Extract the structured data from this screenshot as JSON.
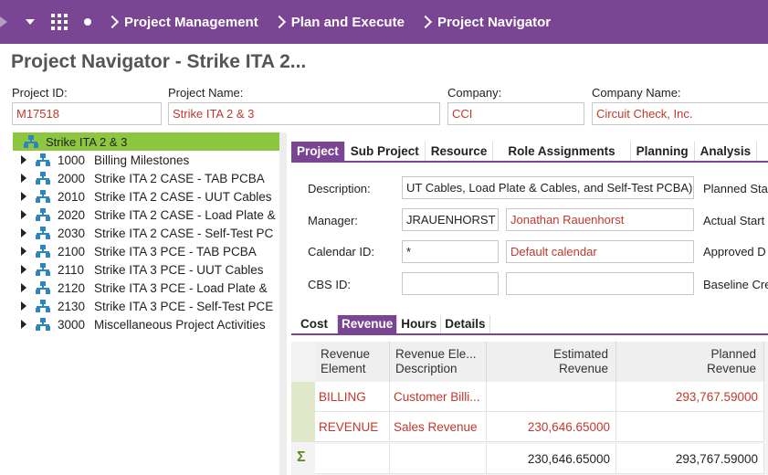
{
  "header": {
    "breadcrumbs": [
      "Project Management",
      "Plan and Execute",
      "Project Navigator"
    ],
    "colors": {
      "bar": "#7a4593",
      "accent": "#8dc63f",
      "error_text": "#c0392b"
    }
  },
  "page_title": "Project Navigator - Strike ITA 2...",
  "fields": {
    "project_id": {
      "label": "Project ID:",
      "value": "M17518"
    },
    "project_name": {
      "label": "Project Name:",
      "value": "Strike ITA 2 & 3"
    },
    "company": {
      "label": "Company:",
      "value": "CCI"
    },
    "company_name": {
      "label": "Company Name:",
      "value": "Circuit Check, Inc."
    }
  },
  "tree": {
    "root": "Strike ITA 2 & 3",
    "items": [
      {
        "code": "1000",
        "name": "Billing Milestones"
      },
      {
        "code": "2000",
        "name": "Strike ITA 2 CASE - TAB PCBA"
      },
      {
        "code": "2010",
        "name": "Strike ITA 2 CASE - UUT Cables"
      },
      {
        "code": "2020",
        "name": "Strike ITA 2 CASE - Load Plate &"
      },
      {
        "code": "2030",
        "name": "Strike ITA 2 CASE - Self-Test PC"
      },
      {
        "code": "2100",
        "name": "Strike ITA 3 PCE - TAB PCBA"
      },
      {
        "code": "2110",
        "name": "Strike ITA 3 PCE - UUT Cables"
      },
      {
        "code": "2120",
        "name": "Strike ITA 3 PCE - Load Plate &"
      },
      {
        "code": "2130",
        "name": "Strike ITA 3 PCE - Self-Test PCE"
      },
      {
        "code": "3000",
        "name": "Miscellaneous Project Activities"
      }
    ]
  },
  "tabs": [
    "Project",
    "Sub Project",
    "Resource",
    "Role Assignments",
    "Planning",
    "Analysis"
  ],
  "details": {
    "description": {
      "label": "Description:",
      "value": "UT Cables, Load Plate & Cables, and Self-Test PCBA)"
    },
    "manager": {
      "label": "Manager:",
      "id": "JRAUENHORST",
      "name": "Jonathan Rauenhorst"
    },
    "calendar": {
      "label": "Calendar ID:",
      "id": "*",
      "name": "Default calendar"
    },
    "cbs": {
      "label": "CBS ID:",
      "id": "",
      "name": ""
    },
    "right_labels": [
      "Planned Sta",
      "Actual Start",
      "Approved D",
      "Baseline Cre"
    ]
  },
  "subtabs": [
    "Cost",
    "Revenue",
    "Hours",
    "Details"
  ],
  "revenue_grid": {
    "headers": [
      [
        "Revenue",
        "Element"
      ],
      [
        "Revenue Ele...",
        "Description"
      ],
      [
        "Estimated",
        "Revenue"
      ],
      [
        "Planned",
        "Revenue"
      ]
    ],
    "rows": [
      {
        "element": "BILLING",
        "description": "Customer Billi...",
        "estimated": "",
        "planned": "293,767.59000"
      },
      {
        "element": "REVENUE",
        "description": "Sales Revenue",
        "estimated": "230,646.65000",
        "planned": ""
      }
    ],
    "totals": {
      "symbol": "Σ",
      "estimated": "230,646.65000",
      "planned": "293,767.59000"
    }
  }
}
